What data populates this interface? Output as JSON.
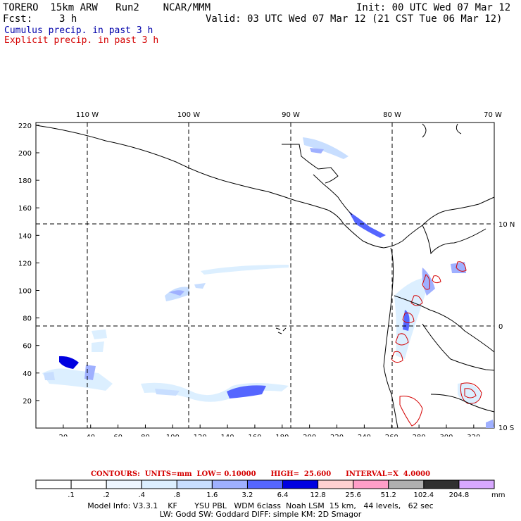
{
  "header": {
    "model": "TORERO  15km ARW   Run2    NCAR/MMM",
    "init": "Init: 00 UTC Wed 07 Mar 12",
    "fcst_label": "Fcst:",
    "fcst_value": "3 h",
    "valid": "Valid: 03 UTC Wed 07 Mar 12 (21 CST Tue 06 Mar 12)"
  },
  "legend": {
    "cumulus": "Cumulus precip. in past 3 h",
    "explicit": "Explicit precip. in past 3 h",
    "cumulus_color": "#0000aa",
    "explicit_color": "#d40000"
  },
  "map": {
    "lon_labels": [
      "110 W",
      "100 W",
      "90 W",
      "80 W",
      "70 W"
    ],
    "lat_labels": [
      "10 N",
      "0",
      "10 S"
    ],
    "x_ticks": [
      "20",
      "40",
      "60",
      "80",
      "100",
      "120",
      "140",
      "160",
      "180",
      "200",
      "220",
      "240",
      "260",
      "280",
      "300",
      "320"
    ],
    "y_ticks": [
      "20",
      "40",
      "60",
      "80",
      "100",
      "120",
      "140",
      "160",
      "180",
      "200",
      "220"
    ],
    "x_range": [
      0,
      335
    ],
    "y_range": [
      0,
      222
    ]
  },
  "colorbar": {
    "title": "CONTOURS:  UNITS=mm  LOW= 0.10000      HIGH=  25.600      INTERVAL=X  4.0000",
    "levels": [
      ".1",
      ".2",
      ".4",
      ".8",
      "1.6",
      "3.2",
      "6.4",
      "12.8",
      "25.6",
      "51.2",
      "102.4",
      "204.8"
    ],
    "units": "mm",
    "colors": [
      "#ffffff",
      "#ffffff",
      "#eef6ff",
      "#dcefff",
      "#c8deff",
      "#9fb0ff",
      "#5566ff",
      "#0000e0",
      "#ffd0d0",
      "#ff9ec8",
      "#b0b0b0",
      "#303030",
      "#d8a8ff"
    ]
  },
  "model_info": {
    "line1": "Model Info: V3.3.1    KF       YSU PBL   WDM 6class  Noah LSM  15 km,   44 levels,   62 sec",
    "line2": "LW: Godd SW: Goddard DIFF: simple KM: 2D Smagor"
  }
}
